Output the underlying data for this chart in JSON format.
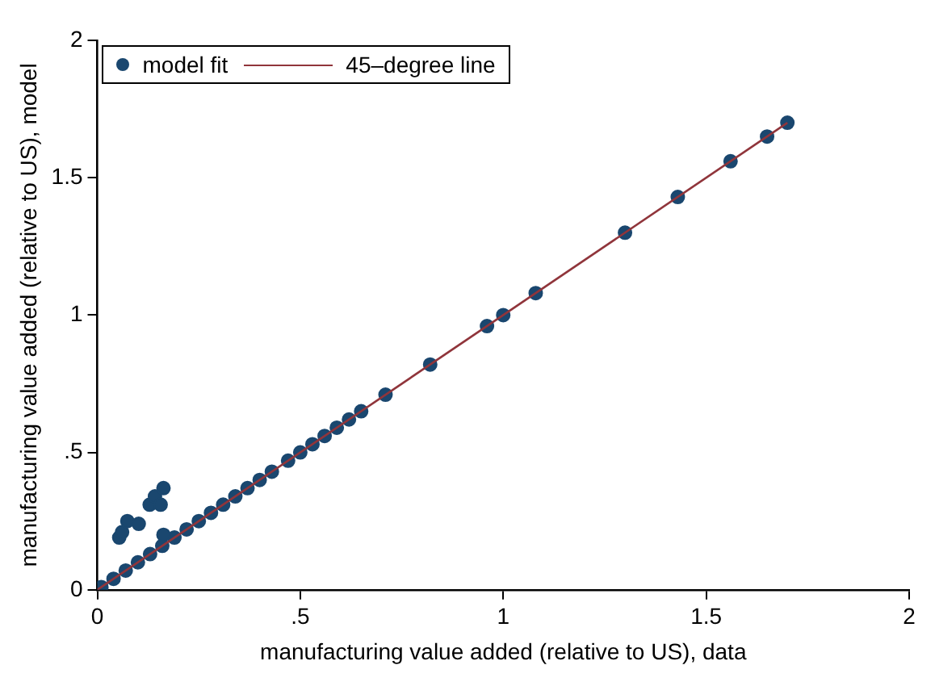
{
  "chart_data": {
    "type": "scatter",
    "xlabel": "manufacturing value added (relative to US), data",
    "ylabel": "manufacturing value added (relative to US), model",
    "xlim": [
      0,
      2
    ],
    "ylim": [
      0,
      2
    ],
    "xticks": [
      0,
      {
        "value": 0.5,
        "label": ".5"
      },
      1,
      1.5,
      2
    ],
    "yticks": [
      0,
      {
        "value": 0.5,
        "label": ".5"
      },
      1,
      1.5,
      2
    ],
    "grid": false,
    "legend": "top left",
    "series": [
      {
        "name": "model fit",
        "marker": "circle",
        "color": "#1a476f",
        "x": [
          0.01,
          0.04,
          0.07,
          0.1,
          0.13,
          0.16,
          0.19,
          0.22,
          0.25,
          0.28,
          0.31,
          0.34,
          0.37,
          0.4,
          0.43,
          0.47,
          0.5,
          0.53,
          0.56,
          0.59,
          0.62,
          0.65,
          0.71,
          0.82,
          0.96,
          1.0,
          1.08,
          1.3,
          1.43,
          1.56,
          1.65,
          1.7,
          0.054,
          0.061,
          0.074,
          0.102,
          0.129,
          0.142,
          0.163,
          0.156,
          0.163
        ],
        "values": [
          0.01,
          0.04,
          0.07,
          0.1,
          0.13,
          0.16,
          0.19,
          0.22,
          0.25,
          0.28,
          0.31,
          0.34,
          0.37,
          0.4,
          0.43,
          0.47,
          0.5,
          0.53,
          0.56,
          0.59,
          0.62,
          0.65,
          0.71,
          0.82,
          0.96,
          1.0,
          1.08,
          1.3,
          1.43,
          1.56,
          1.65,
          1.7,
          0.19,
          0.21,
          0.25,
          0.24,
          0.31,
          0.34,
          0.37,
          0.31,
          0.2
        ]
      },
      {
        "name": "45–degree line",
        "type": "line",
        "color": "#90353b",
        "x": [
          0,
          1.7
        ],
        "values": [
          0,
          1.7
        ]
      }
    ]
  }
}
